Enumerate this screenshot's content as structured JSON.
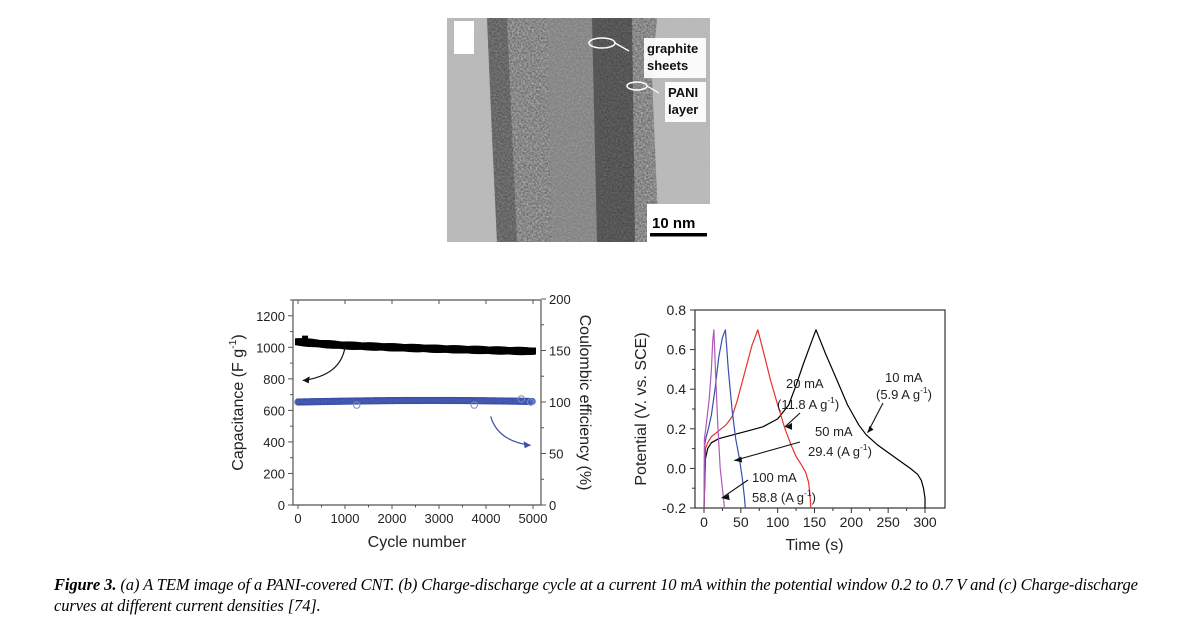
{
  "figure_a": {
    "label": "(a)",
    "description": "TEM image of a PANI-covered CNT",
    "annotations": [
      "graphite sheets",
      "PANI layer"
    ],
    "annotation_lines": [
      [
        "graphite",
        "sheets"
      ],
      [
        "PANI",
        "layer"
      ]
    ],
    "scale_bar": "10 nm"
  },
  "caption": {
    "lead": "Figure 3.",
    "text": " (a) A TEM image of a PANI-covered CNT. (b) Charge-discharge cycle at a current 10 mA within the potential window 0.2 to 0.7 V and (c) Charge-discharge curves at different current densities [74]."
  },
  "chart_data": [
    {
      "id": "b",
      "type": "scatter",
      "title": "",
      "xlabel": "Cycle number",
      "ylabel": "Capacitance (F g-1)",
      "ylabel_parts": [
        "Capacitance (F g",
        "-1",
        ")"
      ],
      "y2label": "Coulombic efficiency (%)",
      "xlim": [
        -100,
        5150
      ],
      "ylim": [
        0,
        1300
      ],
      "y2lim": [
        0,
        200
      ],
      "xticks": [
        0,
        1000,
        2000,
        3000,
        4000,
        5000
      ],
      "yticks": [
        0,
        200,
        400,
        600,
        800,
        1000,
        1200
      ],
      "y2ticks": [
        0,
        50,
        100,
        150,
        200
      ],
      "grid": false,
      "legend": "none",
      "series": [
        {
          "name": "Capacitance",
          "axis": "left",
          "color": "#000000",
          "marker": "square",
          "x": [
            0,
            200,
            500,
            1000,
            1500,
            2000,
            2500,
            3000,
            3500,
            4000,
            4500,
            5000
          ],
          "y": [
            1035,
            1030,
            1022,
            1012,
            1006,
            1000,
            995,
            990,
            986,
            982,
            978,
            975
          ]
        },
        {
          "name": "Coulombic efficiency",
          "axis": "right",
          "color": "#3a4fa8",
          "marker": "circle-open",
          "x": [
            0,
            500,
            1000,
            1500,
            2000,
            2500,
            3000,
            3500,
            4000,
            4500,
            5000
          ],
          "y": [
            100,
            100,
            100,
            100,
            100,
            100,
            100,
            100,
            100,
            100,
            100
          ]
        }
      ],
      "annotations": [
        {
          "text": "",
          "arrow": "capacitance-to-left-axis",
          "color": "#000000"
        },
        {
          "text": "",
          "arrow": "efficiency-to-right-axis",
          "color": "#3a4fa8"
        }
      ]
    },
    {
      "id": "c",
      "type": "line",
      "title": "",
      "xlabel": "Time (s)",
      "ylabel": "Potential (V. vs. SCE)",
      "xlim": [
        -12,
        328
      ],
      "ylim": [
        -0.2,
        0.8
      ],
      "xticks": [
        0,
        50,
        100,
        150,
        200,
        250,
        300
      ],
      "yticks": [
        -0.2,
        0.0,
        0.2,
        0.4,
        0.6,
        0.8
      ],
      "ytick_labels": [
        "-0.2",
        "0.0",
        "0.2",
        "0.4",
        "0.6",
        "0.8"
      ],
      "grid": false,
      "legend": "none",
      "series": [
        {
          "name": "10 mA (5.9 A g-1)",
          "color": "#000000",
          "x": [
            0,
            2,
            5,
            10,
            20,
            40,
            60,
            80,
            100,
            115,
            125,
            135,
            145,
            152,
            165,
            180,
            195,
            210,
            220,
            235,
            250,
            265,
            280,
            290,
            295,
            298,
            300,
            300
          ],
          "y": [
            -0.2,
            0.05,
            0.1,
            0.13,
            0.15,
            0.17,
            0.19,
            0.21,
            0.25,
            0.32,
            0.42,
            0.53,
            0.63,
            0.7,
            0.58,
            0.45,
            0.32,
            0.22,
            0.17,
            0.12,
            0.08,
            0.04,
            0.0,
            -0.03,
            -0.06,
            -0.1,
            -0.15,
            -0.2
          ]
        },
        {
          "name": "20 mA (11.8 A g-1)",
          "color": "#e8302e",
          "x": [
            0,
            2,
            5,
            10,
            20,
            30,
            38,
            45,
            55,
            65,
            73,
            80,
            90,
            100,
            110,
            118,
            125,
            132,
            138,
            142,
            144,
            145
          ],
          "y": [
            -0.2,
            0.1,
            0.13,
            0.16,
            0.19,
            0.22,
            0.26,
            0.34,
            0.48,
            0.62,
            0.7,
            0.6,
            0.45,
            0.32,
            0.2,
            0.12,
            0.06,
            0.02,
            -0.02,
            -0.07,
            -0.14,
            -0.2
          ]
        },
        {
          "name": "50 mA (29.4 A g-1)",
          "color": "#3a4fa8",
          "x": [
            0,
            1,
            3,
            6,
            10,
            15,
            20,
            25,
            29,
            33,
            38,
            43,
            48,
            52,
            55,
            56
          ],
          "y": [
            -0.2,
            0.12,
            0.16,
            0.2,
            0.27,
            0.4,
            0.56,
            0.66,
            0.7,
            0.5,
            0.3,
            0.15,
            0.05,
            -0.05,
            -0.15,
            -0.2
          ]
        },
        {
          "name": "100 mA (58.8 A g-1)",
          "color": "#b05ab8",
          "x": [
            0,
            0.5,
            2,
            4,
            7,
            10,
            12,
            13.5,
            16,
            19,
            22,
            25,
            27,
            27.5
          ],
          "y": [
            -0.2,
            0.15,
            0.19,
            0.25,
            0.35,
            0.5,
            0.65,
            0.7,
            0.45,
            0.2,
            0.0,
            -0.1,
            -0.17,
            -0.2
          ]
        }
      ],
      "annotations": [
        {
          "lines": [
            "10 mA",
            "(5.9 A g",
            "-1",
            ")"
          ],
          "target": "10 mA"
        },
        {
          "lines": [
            "20 mA",
            "(11.8 A g",
            "-1",
            ")"
          ],
          "target": "20 mA"
        },
        {
          "lines": [
            "50 mA",
            "29.4 (A g",
            "-1",
            ")"
          ],
          "target": "50 mA"
        },
        {
          "lines": [
            "100 mA",
            "58.8 (A g",
            "-1",
            ")"
          ],
          "target": "100 mA"
        }
      ]
    }
  ]
}
